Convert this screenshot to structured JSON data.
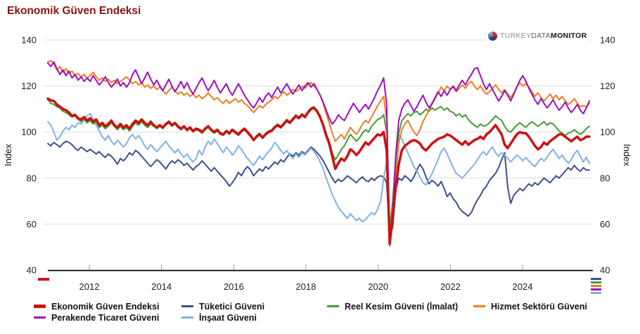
{
  "title": "Ekonomik Güven Endeksi",
  "logo": {
    "part1": "TURKEY",
    "part2": "DATA",
    "part3": "MONITOR"
  },
  "chart_data": {
    "type": "line",
    "title": "Ekonomik Güven Endeksi",
    "ylabel_left": "Index",
    "ylabel_right": "Index",
    "ylim": [
      40,
      140
    ],
    "yticks": [
      40,
      60,
      80,
      100,
      120,
      140
    ],
    "xticks": [
      2012,
      2014,
      2016,
      2018,
      2020,
      2022,
      2024
    ],
    "x_range": [
      2010.85,
      2025.85
    ],
    "x_frequency": "monthly",
    "grid": "horizontal",
    "legend_position": "bottom",
    "draw_order": [
      1,
      5,
      2,
      3,
      4,
      0
    ],
    "series": [
      {
        "id": "ekonomik-guven-endeksi",
        "name": "Ekonomik Güven Endeksi",
        "color": "#cc1212",
        "line_width": 3.5,
        "values": [
          114.5,
          113.8,
          113.5,
          112.0,
          111.0,
          110.0,
          109.5,
          108.5,
          107.0,
          107.5,
          106.0,
          105.5,
          106.5,
          105.0,
          106.0,
          104.5,
          105.5,
          103.0,
          104.0,
          102.5,
          103.5,
          105.0,
          103.0,
          102.0,
          103.5,
          102.0,
          103.0,
          101.5,
          103.5,
          105.0,
          104.0,
          105.5,
          104.0,
          103.0,
          104.5,
          103.0,
          102.0,
          103.0,
          102.0,
          103.5,
          104.5,
          103.0,
          104.0,
          102.5,
          101.5,
          102.5,
          101.0,
          102.0,
          100.5,
          101.5,
          101.0,
          100.0,
          101.5,
          102.5,
          101.0,
          100.0,
          101.0,
          99.5,
          99.0,
          100.5,
          99.5,
          101.0,
          100.0,
          99.0,
          100.5,
          101.5,
          100.0,
          98.5,
          96.5,
          98.0,
          99.0,
          97.5,
          99.0,
          100.0,
          100.5,
          102.0,
          103.0,
          102.0,
          103.5,
          105.0,
          104.0,
          105.5,
          107.0,
          106.0,
          107.5,
          106.5,
          108.5,
          110.0,
          110.5,
          109.0,
          106.5,
          103.0,
          98.5,
          95.0,
          89.5,
          84.0,
          86.5,
          88.5,
          87.5,
          89.5,
          92.5,
          91.5,
          90.0,
          91.5,
          93.5,
          95.5,
          94.5,
          96.0,
          97.5,
          99.0,
          98.5,
          100.0,
          92.0,
          51.5,
          63.0,
          76.0,
          86.0,
          92.0,
          94.0,
          95.0,
          96.0,
          96.5,
          96.0,
          95.0,
          93.0,
          92.0,
          93.5,
          95.0,
          96.0,
          97.0,
          97.5,
          98.0,
          99.0,
          98.5,
          97.5,
          96.5,
          95.5,
          94.5,
          96.0,
          94.5,
          95.5,
          96.5,
          97.0,
          98.0,
          97.0,
          99.0,
          100.0,
          101.5,
          103.0,
          101.0,
          99.0,
          94.5,
          93.0,
          95.0,
          97.0,
          99.0,
          100.0,
          99.5,
          99.5,
          98.0,
          96.0,
          94.0,
          92.5,
          93.5,
          95.5,
          94.5,
          96.0,
          97.0,
          98.0,
          99.0,
          99.0,
          98.0,
          97.0,
          96.0,
          97.0,
          98.0,
          96.5,
          97.0,
          98.0,
          98.0
        ]
      },
      {
        "id": "tuketici-guveni",
        "name": "Tüketici Güveni",
        "color": "#3e4f8c",
        "line_width": 2,
        "values": [
          95.0,
          94.0,
          95.5,
          94.5,
          93.5,
          95.0,
          96.0,
          95.5,
          94.5,
          93.0,
          92.0,
          93.5,
          92.5,
          91.5,
          92.5,
          91.5,
          90.5,
          91.5,
          90.0,
          89.0,
          90.5,
          89.5,
          88.0,
          86.0,
          88.5,
          87.5,
          89.0,
          91.0,
          90.0,
          92.0,
          91.0,
          89.5,
          88.0,
          86.5,
          85.0,
          86.5,
          88.0,
          87.0,
          85.5,
          84.0,
          86.0,
          87.5,
          86.5,
          88.0,
          87.0,
          85.5,
          86.5,
          85.0,
          83.5,
          85.0,
          86.0,
          87.5,
          86.0,
          84.5,
          83.0,
          84.5,
          83.0,
          81.5,
          80.0,
          78.5,
          76.5,
          78.0,
          80.0,
          82.5,
          81.0,
          83.5,
          85.0,
          83.5,
          81.0,
          82.5,
          84.0,
          83.0,
          85.0,
          84.0,
          85.5,
          87.0,
          86.0,
          88.0,
          87.0,
          89.0,
          90.5,
          89.5,
          91.0,
          90.0,
          91.5,
          90.5,
          92.0,
          93.5,
          92.5,
          91.0,
          89.5,
          87.5,
          85.0,
          82.5,
          80.0,
          78.0,
          79.5,
          78.5,
          79.5,
          81.0,
          80.0,
          79.0,
          78.0,
          79.5,
          80.5,
          79.0,
          78.5,
          80.0,
          79.0,
          80.5,
          81.0,
          80.5,
          78.0,
          55.0,
          58.5,
          75.0,
          80.0,
          79.0,
          81.0,
          80.0,
          78.5,
          80.5,
          83.5,
          86.0,
          84.0,
          80.5,
          77.5,
          79.0,
          78.0,
          76.5,
          78.5,
          75.5,
          72.0,
          73.5,
          71.0,
          69.5,
          67.0,
          65.5,
          64.5,
          63.5,
          65.0,
          68.0,
          70.5,
          72.5,
          75.0,
          76.5,
          79.0,
          80.5,
          82.0,
          84.5,
          88.0,
          91.0,
          76.0,
          69.0,
          72.5,
          74.0,
          75.5,
          74.5,
          76.0,
          77.5,
          76.5,
          78.0,
          77.0,
          78.5,
          80.0,
          79.0,
          78.0,
          79.5,
          81.0,
          80.0,
          81.5,
          83.0,
          84.5,
          83.5,
          85.5,
          84.0,
          83.0,
          84.5,
          83.5,
          83.5
        ]
      },
      {
        "id": "reel-kesim-guveni",
        "name": "Reel Kesim Güveni (İmalat)",
        "color": "#449a38",
        "line_width": 2,
        "values": [
          114.0,
          112.5,
          112.0,
          111.0,
          110.5,
          109.0,
          108.5,
          107.5,
          106.5,
          107.0,
          105.5,
          104.5,
          105.5,
          104.0,
          105.0,
          103.5,
          104.5,
          102.0,
          103.0,
          101.5,
          102.5,
          104.0,
          102.5,
          101.0,
          102.5,
          101.0,
          102.0,
          100.5,
          102.5,
          104.0,
          103.0,
          104.5,
          103.0,
          102.0,
          103.5,
          102.5,
          101.5,
          102.5,
          101.5,
          103.0,
          104.0,
          102.5,
          103.5,
          102.0,
          101.0,
          102.0,
          100.5,
          101.5,
          100.0,
          101.0,
          100.5,
          99.5,
          101.0,
          102.0,
          100.5,
          99.5,
          100.5,
          99.0,
          98.5,
          100.0,
          99.0,
          100.5,
          99.5,
          98.5,
          100.0,
          101.0,
          99.5,
          98.0,
          96.5,
          98.5,
          99.5,
          98.0,
          99.5,
          100.5,
          101.0,
          102.5,
          103.5,
          102.5,
          104.0,
          105.5,
          104.5,
          106.0,
          107.5,
          106.5,
          108.0,
          107.0,
          109.0,
          110.5,
          111.0,
          109.5,
          107.0,
          103.5,
          99.5,
          96.0,
          91.0,
          88.0,
          90.0,
          92.5,
          94.0,
          96.5,
          99.0,
          97.5,
          96.0,
          97.5,
          99.5,
          101.0,
          100.0,
          102.5,
          104.0,
          105.5,
          106.0,
          107.5,
          100.0,
          58.0,
          70.0,
          89.0,
          99.5,
          105.0,
          106.5,
          108.0,
          107.0,
          108.5,
          109.0,
          107.5,
          108.5,
          110.0,
          109.0,
          110.5,
          109.5,
          110.5,
          111.0,
          109.5,
          110.5,
          109.0,
          108.5,
          107.0,
          108.0,
          106.5,
          107.5,
          105.5,
          104.0,
          103.0,
          102.0,
          103.5,
          102.5,
          103.0,
          104.0,
          105.5,
          107.0,
          106.0,
          105.0,
          102.5,
          100.5,
          100.0,
          101.5,
          103.0,
          104.0,
          103.0,
          102.0,
          103.5,
          104.5,
          103.5,
          102.5,
          103.5,
          104.5,
          103.0,
          104.0,
          103.5,
          102.0,
          100.5,
          99.5,
          98.5,
          99.5,
          100.0,
          101.0,
          100.0,
          99.0,
          100.0,
          101.5,
          102.5
        ]
      },
      {
        "id": "hizmet-sektoru-guveni",
        "name": "Hizmet Sektörü Güveni",
        "color": "#ef7d22",
        "line_width": 2,
        "values": [
          130.5,
          131.0,
          129.5,
          127.0,
          128.5,
          126.0,
          127.5,
          125.5,
          126.5,
          124.5,
          125.5,
          124.0,
          125.0,
          123.5,
          124.5,
          126.0,
          124.0,
          122.5,
          123.5,
          122.0,
          123.0,
          121.5,
          122.5,
          121.0,
          122.0,
          123.0,
          124.0,
          122.5,
          121.0,
          122.0,
          120.5,
          121.5,
          119.5,
          120.5,
          119.0,
          120.0,
          118.5,
          119.5,
          118.0,
          116.5,
          118.0,
          119.5,
          118.0,
          116.5,
          117.5,
          116.0,
          117.0,
          115.5,
          116.5,
          115.0,
          116.0,
          114.5,
          115.5,
          117.0,
          115.5,
          114.0,
          115.0,
          113.5,
          112.5,
          114.0,
          112.5,
          113.5,
          114.5,
          113.0,
          114.0,
          112.5,
          111.5,
          110.0,
          108.5,
          110.0,
          111.5,
          110.5,
          112.0,
          113.0,
          114.0,
          115.5,
          114.5,
          116.0,
          117.5,
          116.0,
          117.0,
          118.5,
          117.5,
          118.5,
          120.0,
          119.0,
          120.5,
          121.5,
          120.0,
          118.5,
          116.0,
          112.5,
          108.0,
          104.0,
          99.5,
          96.0,
          97.5,
          99.0,
          97.0,
          99.5,
          102.0,
          100.5,
          99.0,
          101.0,
          103.5,
          105.0,
          104.0,
          106.5,
          109.0,
          111.5,
          113.5,
          115.5,
          105.0,
          50.5,
          61.0,
          80.0,
          95.0,
          101.0,
          103.5,
          105.0,
          102.5,
          100.0,
          98.5,
          101.0,
          104.5,
          107.0,
          109.5,
          112.0,
          114.5,
          117.0,
          119.5,
          118.0,
          120.0,
          118.5,
          119.5,
          117.5,
          119.0,
          120.5,
          119.0,
          121.0,
          122.0,
          120.0,
          118.5,
          120.0,
          118.0,
          116.5,
          117.5,
          119.0,
          120.5,
          118.5,
          117.0,
          118.5,
          116.5,
          115.0,
          117.0,
          119.5,
          121.5,
          120.0,
          121.0,
          119.5,
          117.5,
          115.5,
          117.0,
          115.0,
          113.5,
          115.0,
          116.5,
          114.5,
          116.0,
          114.0,
          115.5,
          113.5,
          112.0,
          113.0,
          114.5,
          112.5,
          111.0,
          111.5,
          111.0,
          112.5
        ]
      },
      {
        "id": "perakende-ticaret-guveni",
        "name": "Perakende Ticaret Güveni",
        "color": "#9c10c0",
        "line_width": 2,
        "values": [
          130.0,
          128.5,
          130.5,
          127.5,
          125.0,
          127.0,
          124.5,
          126.5,
          123.5,
          125.0,
          122.5,
          124.0,
          122.0,
          123.5,
          122.0,
          124.5,
          122.5,
          120.5,
          122.0,
          124.0,
          121.5,
          119.5,
          121.0,
          123.0,
          120.0,
          121.5,
          119.5,
          121.5,
          125.0,
          127.0,
          124.0,
          121.0,
          123.5,
          126.0,
          123.0,
          120.5,
          122.5,
          120.0,
          118.0,
          120.5,
          123.0,
          120.0,
          117.5,
          119.5,
          122.0,
          119.0,
          121.5,
          118.5,
          116.5,
          119.0,
          121.5,
          123.5,
          120.5,
          118.0,
          120.0,
          122.5,
          119.5,
          117.0,
          119.0,
          121.0,
          118.0,
          116.0,
          118.5,
          121.0,
          118.5,
          116.0,
          114.0,
          112.0,
          110.5,
          112.5,
          115.0,
          113.0,
          115.5,
          117.0,
          115.0,
          117.5,
          119.5,
          117.0,
          119.0,
          121.0,
          118.5,
          116.5,
          118.5,
          120.5,
          118.0,
          120.0,
          121.5,
          119.5,
          121.0,
          118.5,
          116.0,
          113.0,
          109.5,
          106.0,
          103.5,
          105.0,
          107.5,
          106.0,
          105.0,
          107.5,
          110.0,
          112.5,
          110.5,
          108.5,
          110.5,
          112.0,
          110.0,
          112.5,
          115.0,
          118.0,
          120.5,
          123.5,
          112.0,
          51.0,
          65.0,
          90.0,
          105.0,
          110.0,
          112.5,
          114.0,
          111.5,
          109.0,
          111.0,
          113.5,
          116.0,
          113.0,
          110.5,
          112.5,
          115.0,
          117.5,
          115.5,
          118.0,
          116.0,
          118.5,
          120.0,
          118.0,
          120.5,
          122.5,
          120.5,
          123.0,
          125.0,
          127.5,
          128.0,
          124.5,
          121.0,
          118.5,
          121.0,
          118.5,
          116.0,
          113.5,
          115.5,
          118.0,
          116.0,
          113.5,
          116.5,
          119.5,
          122.5,
          124.5,
          122.0,
          119.0,
          116.5,
          114.0,
          112.0,
          114.5,
          112.5,
          110.5,
          112.0,
          114.0,
          111.5,
          109.5,
          111.0,
          113.0,
          110.5,
          108.5,
          110.0,
          112.0,
          109.5,
          108.0,
          110.5,
          113.5
        ]
      },
      {
        "id": "insaat-guveni",
        "name": "İnşaat Güveni",
        "color": "#7fb2e5",
        "line_width": 2,
        "values": [
          104.5,
          103.0,
          100.0,
          96.5,
          98.0,
          100.5,
          102.0,
          101.0,
          103.0,
          102.0,
          104.0,
          103.5,
          105.5,
          107.0,
          108.0,
          105.5,
          103.0,
          100.5,
          98.0,
          96.5,
          98.5,
          96.0,
          94.5,
          96.5,
          95.0,
          93.5,
          95.0,
          97.5,
          99.0,
          97.0,
          98.5,
          96.5,
          94.0,
          92.5,
          94.5,
          93.0,
          91.5,
          93.0,
          94.5,
          96.0,
          94.0,
          92.5,
          91.0,
          92.5,
          90.5,
          89.0,
          90.5,
          88.5,
          87.0,
          88.5,
          92.0,
          90.0,
          93.5,
          96.0,
          94.5,
          97.0,
          95.0,
          93.0,
          91.0,
          93.5,
          92.0,
          90.0,
          91.5,
          94.0,
          92.5,
          90.5,
          88.5,
          87.0,
          85.5,
          87.5,
          89.5,
          88.0,
          90.0,
          91.5,
          93.0,
          95.5,
          94.0,
          92.0,
          90.5,
          92.0,
          90.0,
          88.5,
          90.5,
          89.0,
          91.0,
          90.0,
          91.5,
          93.0,
          91.5,
          89.5,
          87.0,
          84.0,
          80.0,
          76.5,
          73.0,
          70.0,
          67.5,
          65.5,
          64.0,
          62.5,
          64.5,
          63.0,
          61.5,
          62.5,
          61.0,
          62.0,
          63.5,
          65.0,
          64.0,
          66.5,
          70.0,
          80.0,
          87.0,
          50.5,
          62.0,
          85.0,
          99.0,
          97.0,
          94.0,
          91.0,
          88.0,
          85.0,
          83.0,
          80.5,
          78.0,
          77.0,
          79.5,
          82.0,
          85.0,
          88.0,
          91.5,
          93.0,
          90.5,
          87.5,
          84.5,
          82.0,
          81.0,
          80.0,
          81.5,
          83.0,
          84.5,
          86.0,
          88.0,
          90.0,
          91.5,
          90.0,
          92.0,
          93.5,
          91.0,
          89.5,
          91.0,
          90.0,
          88.5,
          87.0,
          88.5,
          90.0,
          89.0,
          87.5,
          89.0,
          87.5,
          86.0,
          85.0,
          87.0,
          88.5,
          87.5,
          89.0,
          91.0,
          92.5,
          90.5,
          88.5,
          90.0,
          88.0,
          86.5,
          88.0,
          90.5,
          92.0,
          89.5,
          87.0,
          89.0,
          86.5
        ]
      }
    ]
  },
  "colors": {
    "title": "#8b1212",
    "gridline": "#dddddd",
    "axis": "#000000",
    "tick": "#999999",
    "tick_label": "#222222"
  }
}
